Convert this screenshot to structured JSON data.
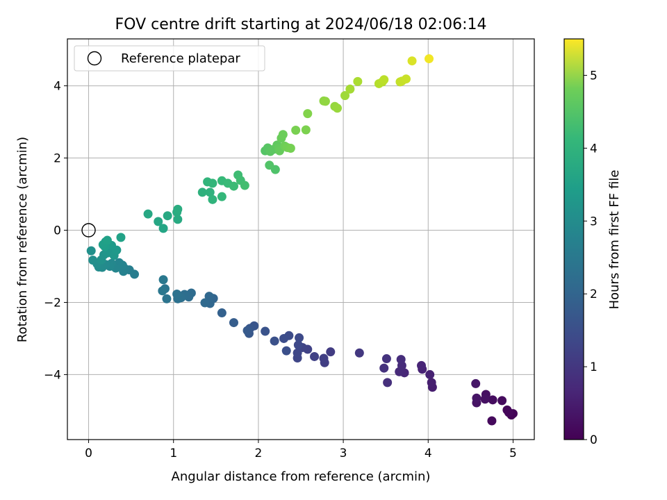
{
  "chart_data": {
    "type": "scatter",
    "title": "FOV centre drift starting at 2024/06/18 02:06:14",
    "xlabel": "Angular distance from reference (arcmin)",
    "ylabel": "Rotation from reference (arcmin)",
    "xlim": [
      -0.25,
      5.25
    ],
    "ylim": [
      -5.8,
      5.3
    ],
    "xticks": [
      0,
      1,
      2,
      3,
      4,
      5
    ],
    "yticks": [
      -4,
      -2,
      0,
      2,
      4
    ],
    "grid": true,
    "legend": {
      "position": "top-left",
      "entries": [
        "Reference platepar"
      ]
    },
    "reference_point": {
      "x": 0,
      "y": 0,
      "marker": "open-circle"
    },
    "colorbar": {
      "label": "Hours from first FF file",
      "colormap": "viridis",
      "range": [
        0,
        5.5
      ],
      "ticks": [
        0,
        1,
        2,
        3,
        4,
        5
      ]
    },
    "series": [
      {
        "points": [
          {
            "x": 4.98,
            "y": -5.12,
            "c": 0.02
          },
          {
            "x": 5.0,
            "y": -5.08,
            "c": 0.05
          },
          {
            "x": 4.93,
            "y": -4.98,
            "c": 0.08
          },
          {
            "x": 4.95,
            "y": -5.05,
            "c": 0.1
          },
          {
            "x": 4.75,
            "y": -5.28,
            "c": 0.13
          },
          {
            "x": 4.87,
            "y": -4.72,
            "c": 0.16
          },
          {
            "x": 4.76,
            "y": -4.7,
            "c": 0.19
          },
          {
            "x": 4.68,
            "y": -4.55,
            "c": 0.22
          },
          {
            "x": 4.67,
            "y": -4.68,
            "c": 0.25
          },
          {
            "x": 4.57,
            "y": -4.78,
            "c": 0.28
          },
          {
            "x": 4.57,
            "y": -4.65,
            "c": 0.31
          },
          {
            "x": 4.56,
            "y": -4.25,
            "c": 0.34
          },
          {
            "x": 4.05,
            "y": -4.35,
            "c": 0.45
          },
          {
            "x": 4.04,
            "y": -4.22,
            "c": 0.48
          },
          {
            "x": 4.02,
            "y": -4.0,
            "c": 0.51
          },
          {
            "x": 3.93,
            "y": -3.85,
            "c": 0.54
          },
          {
            "x": 3.92,
            "y": -3.75,
            "c": 0.57
          },
          {
            "x": 3.72,
            "y": -3.95,
            "c": 0.62
          },
          {
            "x": 3.66,
            "y": -3.92,
            "c": 0.65
          },
          {
            "x": 3.69,
            "y": -3.75,
            "c": 0.68
          },
          {
            "x": 3.68,
            "y": -3.58,
            "c": 0.71
          },
          {
            "x": 3.52,
            "y": -4.22,
            "c": 0.76
          },
          {
            "x": 3.48,
            "y": -3.82,
            "c": 0.79
          },
          {
            "x": 3.51,
            "y": -3.56,
            "c": 0.82
          },
          {
            "x": 3.19,
            "y": -3.4,
            "c": 0.9
          },
          {
            "x": 2.85,
            "y": -3.37,
            "c": 0.98
          },
          {
            "x": 2.78,
            "y": -3.67,
            "c": 1.01
          },
          {
            "x": 2.77,
            "y": -3.55,
            "c": 1.04
          },
          {
            "x": 2.66,
            "y": -3.5,
            "c": 1.07
          },
          {
            "x": 2.58,
            "y": -3.3,
            "c": 1.1
          },
          {
            "x": 2.52,
            "y": -3.25,
            "c": 1.13
          },
          {
            "x": 2.46,
            "y": -3.54,
            "c": 1.16
          },
          {
            "x": 2.46,
            "y": -3.4,
            "c": 1.19
          },
          {
            "x": 2.47,
            "y": -3.18,
            "c": 1.22
          },
          {
            "x": 2.48,
            "y": -2.98,
            "c": 1.25
          },
          {
            "x": 2.36,
            "y": -2.92,
            "c": 1.28
          },
          {
            "x": 2.3,
            "y": -3.0,
            "c": 1.31
          },
          {
            "x": 2.33,
            "y": -3.34,
            "c": 1.34
          },
          {
            "x": 2.19,
            "y": -3.07,
            "c": 1.38
          },
          {
            "x": 2.08,
            "y": -2.8,
            "c": 1.42
          },
          {
            "x": 1.95,
            "y": -2.65,
            "c": 1.46
          },
          {
            "x": 1.9,
            "y": -2.72,
            "c": 1.49
          },
          {
            "x": 1.89,
            "y": -2.86,
            "c": 1.52
          },
          {
            "x": 1.87,
            "y": -2.78,
            "c": 1.55
          },
          {
            "x": 1.71,
            "y": -2.56,
            "c": 1.62
          },
          {
            "x": 1.57,
            "y": -2.29,
            "c": 1.7
          },
          {
            "x": 1.47,
            "y": -1.89,
            "c": 1.78
          },
          {
            "x": 1.43,
            "y": -2.03,
            "c": 1.81
          },
          {
            "x": 1.42,
            "y": -1.83,
            "c": 1.84
          },
          {
            "x": 1.37,
            "y": -2.01,
            "c": 1.87
          },
          {
            "x": 1.21,
            "y": -1.74,
            "c": 1.92
          },
          {
            "x": 1.18,
            "y": -1.85,
            "c": 1.95
          },
          {
            "x": 1.13,
            "y": -1.78,
            "c": 1.98
          },
          {
            "x": 1.09,
            "y": -1.87,
            "c": 2.01
          },
          {
            "x": 1.05,
            "y": -1.9,
            "c": 2.04
          },
          {
            "x": 1.04,
            "y": -1.77,
            "c": 2.07
          },
          {
            "x": 0.92,
            "y": -1.9,
            "c": 2.12
          },
          {
            "x": 0.9,
            "y": -1.62,
            "c": 2.15
          },
          {
            "x": 0.87,
            "y": -1.68,
            "c": 2.18
          },
          {
            "x": 0.88,
            "y": -1.37,
            "c": 2.21
          },
          {
            "x": 0.54,
            "y": -1.22,
            "c": 2.32
          },
          {
            "x": 0.48,
            "y": -1.1,
            "c": 2.36
          },
          {
            "x": 0.43,
            "y": -1.07,
            "c": 2.4
          },
          {
            "x": 0.41,
            "y": -1.14,
            "c": 2.43
          },
          {
            "x": 0.4,
            "y": -0.97,
            "c": 2.46
          },
          {
            "x": 0.36,
            "y": -0.9,
            "c": 2.49
          },
          {
            "x": 0.32,
            "y": -1.05,
            "c": 2.52
          },
          {
            "x": 0.27,
            "y": -0.92,
            "c": 2.55
          },
          {
            "x": 0.25,
            "y": -1.0,
            "c": 2.58
          },
          {
            "x": 0.2,
            "y": -0.95,
            "c": 2.61
          },
          {
            "x": 0.16,
            "y": -1.03,
            "c": 2.64
          },
          {
            "x": 0.12,
            "y": -1.02,
            "c": 2.67
          },
          {
            "x": 0.1,
            "y": -0.93,
            "c": 2.7
          },
          {
            "x": 0.05,
            "y": -0.83,
            "c": 2.73
          },
          {
            "x": 0.03,
            "y": -0.57,
            "c": 2.76
          },
          {
            "x": 0.15,
            "y": -0.82,
            "c": 2.79
          },
          {
            "x": 0.18,
            "y": -0.68,
            "c": 2.82
          },
          {
            "x": 0.22,
            "y": -0.63,
            "c": 2.85
          },
          {
            "x": 0.26,
            "y": -0.6,
            "c": 2.88
          },
          {
            "x": 0.3,
            "y": -0.7,
            "c": 2.91
          },
          {
            "x": 0.33,
            "y": -0.55,
            "c": 2.94
          },
          {
            "x": 0.27,
            "y": -0.42,
            "c": 2.97
          },
          {
            "x": 0.24,
            "y": -0.4,
            "c": 3.0
          },
          {
            "x": 0.2,
            "y": -0.32,
            "c": 3.03
          },
          {
            "x": 0.19,
            "y": -0.45,
            "c": 3.06
          },
          {
            "x": 0.17,
            "y": -0.4,
            "c": 3.09
          },
          {
            "x": 0.22,
            "y": -0.28,
            "c": 3.12
          },
          {
            "x": 0.38,
            "y": -0.2,
            "c": 3.15
          },
          {
            "x": 0.88,
            "y": 0.05,
            "c": 3.22
          },
          {
            "x": 0.82,
            "y": 0.24,
            "c": 3.25
          },
          {
            "x": 0.7,
            "y": 0.45,
            "c": 3.28
          },
          {
            "x": 0.93,
            "y": 0.4,
            "c": 3.31
          },
          {
            "x": 1.05,
            "y": 0.3,
            "c": 3.34
          },
          {
            "x": 1.04,
            "y": 0.5,
            "c": 3.37
          },
          {
            "x": 1.05,
            "y": 0.58,
            "c": 3.4
          },
          {
            "x": 1.34,
            "y": 1.05,
            "c": 3.5
          },
          {
            "x": 1.43,
            "y": 1.05,
            "c": 3.53
          },
          {
            "x": 1.46,
            "y": 0.85,
            "c": 3.56
          },
          {
            "x": 1.4,
            "y": 1.34,
            "c": 3.59
          },
          {
            "x": 1.46,
            "y": 1.3,
            "c": 3.62
          },
          {
            "x": 1.57,
            "y": 0.93,
            "c": 3.65
          },
          {
            "x": 1.57,
            "y": 1.37,
            "c": 3.68
          },
          {
            "x": 1.64,
            "y": 1.3,
            "c": 3.71
          },
          {
            "x": 1.71,
            "y": 1.22,
            "c": 3.74
          },
          {
            "x": 1.76,
            "y": 1.53,
            "c": 3.77
          },
          {
            "x": 1.79,
            "y": 1.38,
            "c": 3.8
          },
          {
            "x": 1.84,
            "y": 1.24,
            "c": 3.83
          },
          {
            "x": 2.2,
            "y": 1.68,
            "c": 3.95
          },
          {
            "x": 2.13,
            "y": 1.8,
            "c": 3.98
          },
          {
            "x": 2.08,
            "y": 2.2,
            "c": 4.01
          },
          {
            "x": 2.11,
            "y": 2.28,
            "c": 4.04
          },
          {
            "x": 2.14,
            "y": 2.18,
            "c": 4.07
          },
          {
            "x": 2.18,
            "y": 2.24,
            "c": 4.1
          },
          {
            "x": 2.22,
            "y": 2.36,
            "c": 4.13
          },
          {
            "x": 2.24,
            "y": 2.28,
            "c": 4.16
          },
          {
            "x": 2.25,
            "y": 2.2,
            "c": 4.19
          },
          {
            "x": 2.27,
            "y": 2.55,
            "c": 4.22
          },
          {
            "x": 2.29,
            "y": 2.65,
            "c": 4.25
          },
          {
            "x": 2.31,
            "y": 2.33,
            "c": 4.28
          },
          {
            "x": 2.34,
            "y": 2.29,
            "c": 4.31
          },
          {
            "x": 2.38,
            "y": 2.27,
            "c": 4.34
          },
          {
            "x": 2.44,
            "y": 2.77,
            "c": 4.37
          },
          {
            "x": 2.56,
            "y": 2.78,
            "c": 4.4
          },
          {
            "x": 2.58,
            "y": 3.23,
            "c": 4.45
          },
          {
            "x": 2.77,
            "y": 3.58,
            "c": 4.55
          },
          {
            "x": 2.79,
            "y": 3.57,
            "c": 4.58
          },
          {
            "x": 2.9,
            "y": 3.43,
            "c": 4.62
          },
          {
            "x": 2.93,
            "y": 3.38,
            "c": 4.65
          },
          {
            "x": 3.02,
            "y": 3.73,
            "c": 4.7
          },
          {
            "x": 3.08,
            "y": 3.91,
            "c": 4.75
          },
          {
            "x": 3.17,
            "y": 4.12,
            "c": 4.8
          },
          {
            "x": 3.42,
            "y": 4.06,
            "c": 4.88
          },
          {
            "x": 3.46,
            "y": 4.11,
            "c": 4.91
          },
          {
            "x": 3.48,
            "y": 4.17,
            "c": 4.94
          },
          {
            "x": 3.67,
            "y": 4.11,
            "c": 5.0
          },
          {
            "x": 3.69,
            "y": 4.13,
            "c": 5.03
          },
          {
            "x": 3.74,
            "y": 4.19,
            "c": 5.06
          },
          {
            "x": 3.81,
            "y": 4.69,
            "c": 5.2
          },
          {
            "x": 4.01,
            "y": 4.75,
            "c": 5.4
          }
        ]
      }
    ]
  }
}
